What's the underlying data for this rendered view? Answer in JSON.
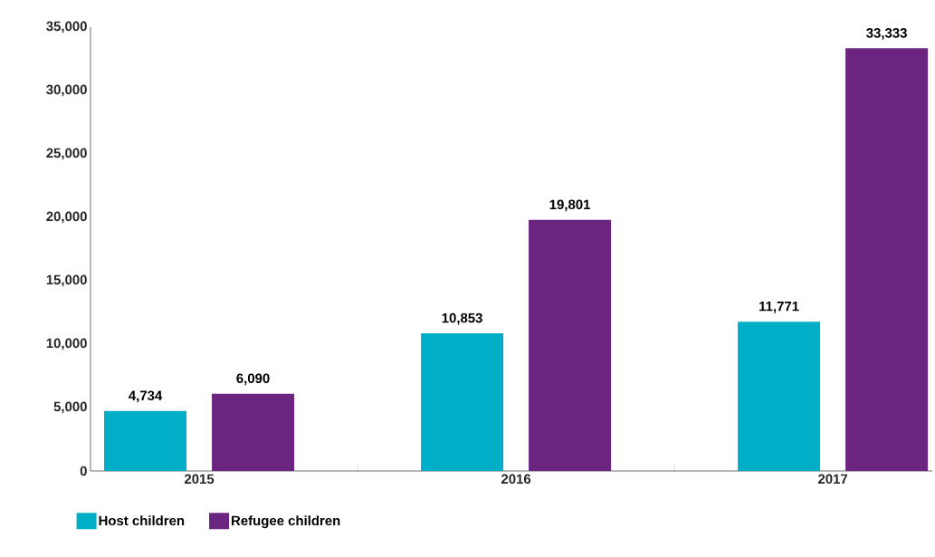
{
  "chart_data": {
    "type": "bar",
    "categories": [
      "2015",
      "2016",
      "2017"
    ],
    "series": [
      {
        "name": "Host children",
        "color": "#00aec7",
        "values": [
          4734,
          10853,
          11771
        ],
        "value_labels": [
          "4,734",
          "10,853",
          "11,771"
        ]
      },
      {
        "name": "Refugee children",
        "color": "#6b2580",
        "values": [
          6090,
          19801,
          33333
        ],
        "value_labels": [
          "6,090",
          "19,801",
          "33,333"
        ]
      }
    ],
    "ylim": [
      0,
      35000
    ],
    "yticks": [
      0,
      {
        "value": 5000,
        "label": "5,000"
      },
      {
        "value": 10000,
        "label": "10,000"
      },
      {
        "value": 15000,
        "label": "15,000"
      },
      {
        "value": 20000,
        "label": "20,000"
      },
      {
        "value": 25000,
        "label": "25,000"
      },
      {
        "value": 30000,
        "label": "30,000"
      },
      {
        "value": 35000,
        "label": "35,000"
      }
    ],
    "grid": false,
    "legend": "bottom left"
  }
}
